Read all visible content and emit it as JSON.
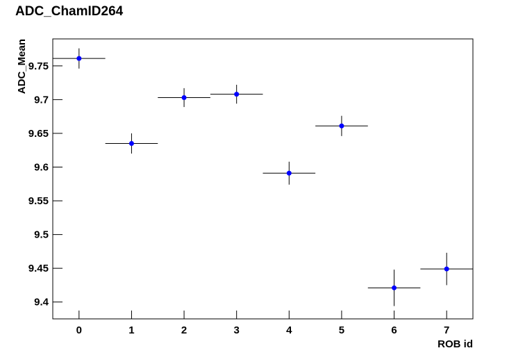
{
  "chart_data": {
    "type": "scatter",
    "title": "ADC_ChamID264",
    "x_label": "ROB id",
    "y_label": "ADC_Mean",
    "x": [
      0,
      1,
      2,
      3,
      4,
      5,
      6,
      7
    ],
    "values": [
      9.761,
      9.635,
      9.703,
      9.708,
      9.591,
      9.661,
      9.421,
      9.449
    ],
    "errors": [
      0.015,
      0.015,
      0.014,
      0.014,
      0.017,
      0.015,
      0.027,
      0.024
    ],
    "xerr": 0.5,
    "color": "#0000ff",
    "xlim": [
      -0.5,
      7.5
    ],
    "xticks": [
      0,
      1,
      2,
      3,
      4,
      5,
      6,
      7
    ],
    "ylim": [
      9.375,
      9.79
    ],
    "yticks": [
      9.4,
      9.45,
      9.5,
      9.55,
      9.6,
      9.65,
      9.7,
      9.75
    ]
  }
}
